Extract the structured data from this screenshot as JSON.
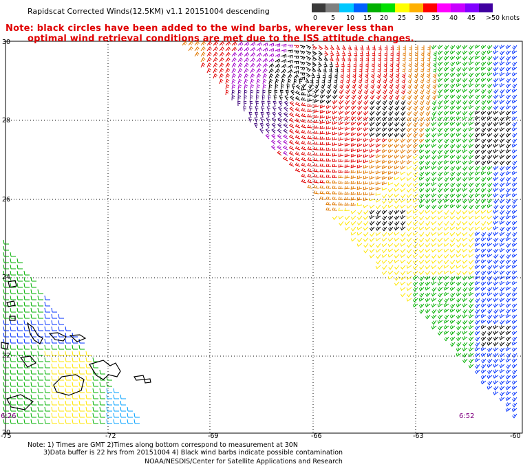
{
  "header": {
    "title": "Rapidscat Corrected Winds(12.5KM) v1.1 20151004 descending"
  },
  "note": {
    "line1": "Note: black circles have been added to the wind barbs, wherever less than",
    "line2": "optimal wind retrieval conditions are met due to the ISS attitude changes."
  },
  "legend": {
    "labels": [
      "0",
      "5",
      "10",
      "15",
      "20",
      "25",
      "30",
      "35",
      "40",
      "45",
      ">50 knots"
    ],
    "colors": [
      "#3a3a3a",
      "#808080",
      "#00c8ff",
      "#0060ff",
      "#00b000",
      "#00e000",
      "#ffff00",
      "#ffb000",
      "#ff0000",
      "#ff00ff",
      "#c800ff",
      "#8000ff",
      "#4000a0"
    ]
  },
  "map": {
    "lon_ticks": [
      "-75",
      "-72",
      "-69",
      "-66",
      "-63",
      "-60"
    ],
    "lat_ticks": [
      "30",
      "28",
      "26",
      "24",
      "22",
      "20"
    ],
    "times": [
      "6:26",
      "6:52"
    ],
    "colors": {
      "black": "#000000",
      "purple": "#3a0078",
      "magenta": "#a000c8",
      "red": "#e00000",
      "orange": "#e07800",
      "yellow": "#ffe600",
      "green": "#00b000",
      "blue": "#0030ff",
      "cyan": "#00a0ff",
      "coast": "#000000",
      "grid": "#000000"
    }
  },
  "footer": {
    "line1": "Note: 1) Times are GMT 2)Times along bottom correspond to measurement at 30N",
    "line2": "3)Data buffer is 22 hrs from 20151004 4) Black wind barbs indicate possible contamination",
    "line3": "NOAA/NESDIS/Center for Satellite Applications and Research"
  }
}
